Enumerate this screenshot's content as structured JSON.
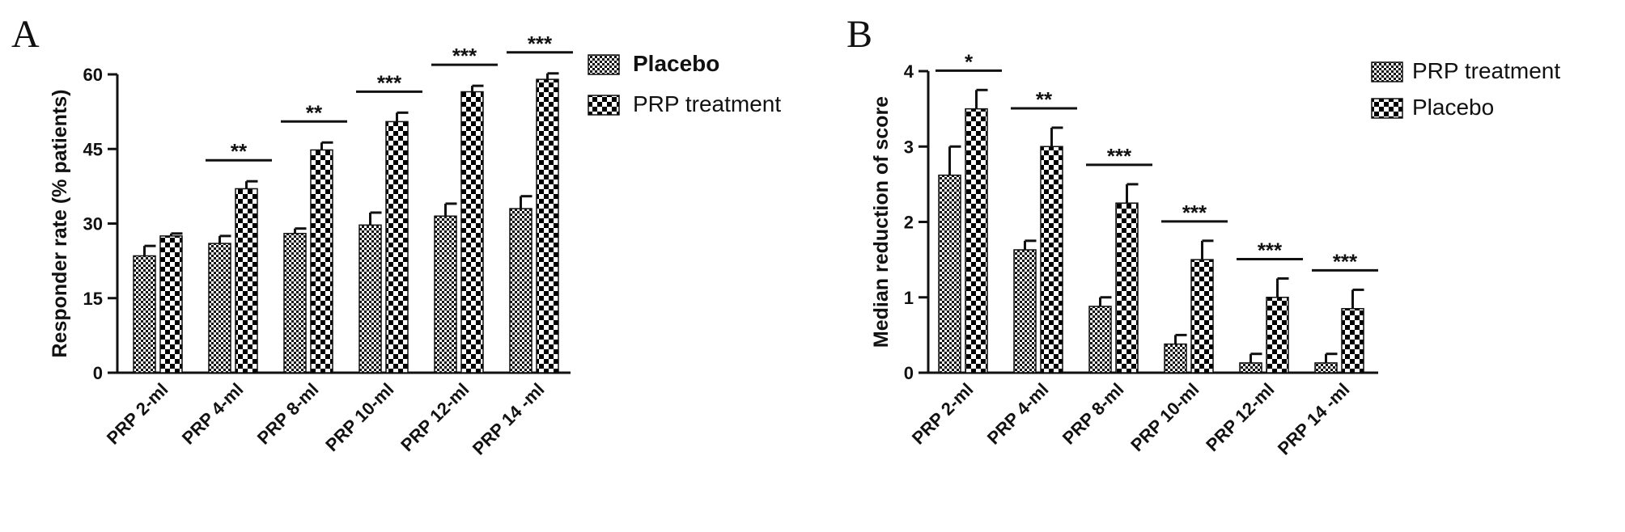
{
  "chart_data": [
    {
      "panel": "A",
      "type": "bar",
      "ylabel": "Responder rate (%  patients)",
      "ylim": [
        0,
        60
      ],
      "yticks": [
        0,
        15,
        30,
        45,
        60
      ],
      "categories": [
        "PRP 2-ml",
        "PRP 4-ml",
        "PRP 8-ml",
        "PRP 10-ml",
        "PRP 12-ml",
        "PRP 14 -ml"
      ],
      "series": [
        {
          "name": "Placebo",
          "pattern": "fine-check",
          "values": [
            23.5,
            26,
            28,
            29.7,
            31.5,
            33
          ],
          "errors": [
            2,
            1.5,
            1,
            2.5,
            2.5,
            2.5
          ]
        },
        {
          "name": "PRP treatment",
          "pattern": "coarse-check",
          "values": [
            27.5,
            37,
            44.8,
            50.5,
            56.5,
            59
          ],
          "errors": [
            0.5,
            1.5,
            1.5,
            1.8,
            1.2,
            1.2
          ]
        }
      ],
      "significance": [
        "",
        "**",
        "**",
        "***",
        "***",
        "***"
      ],
      "legend": {
        "position": "right",
        "bold_first": true
      }
    },
    {
      "panel": "B",
      "type": "bar",
      "ylabel": "Median reduction of score",
      "ylim": [
        0,
        4
      ],
      "yticks": [
        0,
        1,
        2,
        3,
        4
      ],
      "categories": [
        "PRP 2-ml",
        "PRP 4-ml",
        "PRP 8-ml",
        "PRP 10-ml",
        "PRP 12-ml",
        "PRP 14 -ml"
      ],
      "series": [
        {
          "name": "PRP treatment",
          "pattern": "fine-check",
          "values": [
            2.62,
            1.63,
            0.88,
            0.38,
            0.13,
            0.13
          ],
          "errors": [
            0.38,
            0.12,
            0.12,
            0.12,
            0.12,
            0.12
          ]
        },
        {
          "name": "Placebo",
          "pattern": "coarse-check",
          "values": [
            3.5,
            3.0,
            2.25,
            1.5,
            1.0,
            0.85
          ],
          "errors": [
            0.25,
            0.25,
            0.25,
            0.25,
            0.25,
            0.25
          ]
        }
      ],
      "significance": [
        "*",
        "**",
        "***",
        "***",
        "***",
        "***"
      ],
      "legend": {
        "position": "top-right",
        "bold_first": false
      }
    }
  ]
}
